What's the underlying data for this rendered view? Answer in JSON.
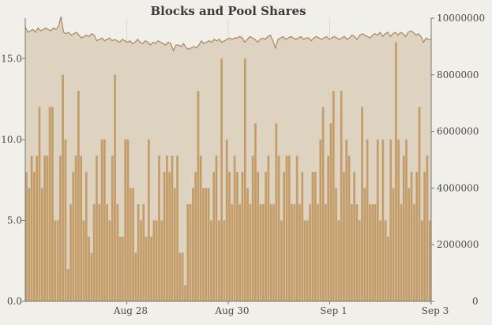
{
  "chart_data": {
    "type": "bar",
    "title": "Blocks and Pool Shares",
    "xlabel": "",
    "ylabel": "",
    "x_range": [
      "2015-08-26",
      "2015-09-03"
    ],
    "y_left": {
      "lim": [
        0,
        17.5
      ],
      "ticks": [
        "0.0",
        "5.0",
        "10.0",
        "15.0"
      ]
    },
    "y_right": {
      "lim": [
        0,
        10000000
      ],
      "ticks": [
        "0",
        "2000000",
        "4000000",
        "6000000",
        "8000000",
        "10000000"
      ]
    },
    "x_ticks": [
      {
        "label": "Aug 28",
        "date": "2015-08-28"
      },
      {
        "label": "Aug 30",
        "date": "2015-08-30"
      },
      {
        "label": "Sep 1",
        "date": "2015-09-01"
      },
      {
        "label": "Sep 3",
        "date": "2015-09-03"
      }
    ],
    "grid": true,
    "colors": {
      "bar": "#c39c68",
      "area_fill": "#dccfbd",
      "area_line": "#a88660",
      "plot_bg": "#f0efea",
      "grid": "#dcdad2",
      "axis": "#777777"
    },
    "series": [
      {
        "axis": "left",
        "type": "bar",
        "values": [
          8,
          7,
          9,
          8,
          9,
          12,
          7,
          9,
          9,
          12,
          12,
          5,
          5,
          9,
          14,
          10,
          2,
          6,
          8,
          9,
          13,
          9,
          5,
          8,
          4,
          3,
          6,
          9,
          6,
          10,
          10,
          6,
          5,
          9,
          14,
          6,
          4,
          4,
          10,
          10,
          7,
          7,
          3,
          6,
          5,
          6,
          4,
          10,
          4,
          5,
          5,
          9,
          5,
          8,
          9,
          8,
          9,
          7,
          9,
          3,
          3,
          1,
          6,
          6,
          7,
          8,
          13,
          9,
          7,
          7,
          7,
          5,
          8,
          9,
          5,
          15,
          5,
          10,
          8,
          6,
          9,
          8,
          6,
          8,
          15,
          7,
          6,
          9,
          11,
          8,
          6,
          6,
          8,
          9,
          6,
          6,
          11,
          9,
          5,
          8,
          9,
          9,
          6,
          6,
          9,
          6,
          8,
          5,
          5,
          6,
          8,
          8,
          6,
          10,
          12,
          6,
          9,
          11,
          13,
          7,
          5,
          13,
          8,
          10,
          9,
          6,
          8,
          6,
          5,
          12,
          7,
          10,
          6,
          6,
          6,
          10,
          5,
          10,
          5,
          4,
          10,
          7,
          16,
          10,
          6,
          9,
          10,
          7,
          8,
          6,
          8,
          12,
          5,
          8,
          9,
          5
        ],
        "y_start": 0
      },
      {
        "axis": "right",
        "type": "area",
        "values": [
          9700000,
          9500000,
          9550000,
          9600000,
          9500000,
          9650000,
          9550000,
          9600000,
          9650000,
          9600000,
          9550000,
          9650000,
          9600000,
          9700000,
          10050000,
          9500000,
          9450000,
          9500000,
          9400000,
          9450000,
          9500000,
          9400000,
          9300000,
          9350000,
          9400000,
          9350000,
          9450000,
          9400000,
          9200000,
          9250000,
          9300000,
          9200000,
          9250000,
          9300000,
          9200000,
          9250000,
          9200000,
          9150000,
          9250000,
          9200000,
          9150000,
          9200000,
          9100000,
          9150000,
          9250000,
          9150000,
          9100000,
          9200000,
          9150000,
          9050000,
          9150000,
          9100000,
          9200000,
          9150000,
          9100000,
          9050000,
          9150000,
          9100000,
          8850000,
          9050000,
          9050000,
          9000000,
          9100000,
          8950000,
          8900000,
          8950000,
          9000000,
          8950000,
          9050000,
          9200000,
          9100000,
          9150000,
          9200000,
          9150000,
          9250000,
          9200000,
          9250000,
          9150000,
          9200000,
          9250000,
          9300000,
          9250000,
          9300000,
          9300000,
          9350000,
          9300000,
          9150000,
          9250000,
          9350000,
          9300000,
          9250000,
          9150000,
          9250000,
          9300000,
          9250000,
          9350000,
          9400000,
          9200000,
          8950000,
          9250000,
          9300000,
          9350000,
          9250000,
          9300000,
          9350000,
          9300000,
          9250000,
          9300000,
          9350000,
          9250000,
          9300000,
          9300000,
          9200000,
          9300000,
          9350000,
          9300000,
          9250000,
          9300000,
          9350000,
          9250000,
          9300000,
          9350000,
          9300000,
          9250000,
          9300000,
          9350000,
          9250000,
          9300000,
          9400000,
          9350000,
          9250000,
          9400000,
          9450000,
          9400000,
          9350000,
          9300000,
          9400000,
          9450000,
          9400000,
          9500000,
          9350000,
          9450000,
          9500000,
          9350000,
          9450000,
          9500000,
          9400000,
          9500000,
          9450000,
          9350000,
          9500000,
          9550000,
          9500000,
          9400000,
          9450000,
          9350000,
          9150000,
          9300000,
          9250000,
          9250000
        ]
      }
    ]
  }
}
